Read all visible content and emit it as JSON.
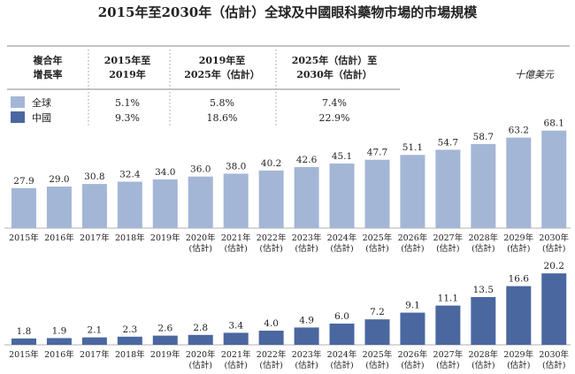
{
  "chart_title": "2015年至2030年（估計）全球及中國眼科藥物市場的市場規模",
  "unit": "十億美元",
  "cagr_table": {
    "header": [
      "複合年",
      "增長率"
    ],
    "periods": [
      {
        "line1": "2015年至",
        "line2": "2019年"
      },
      {
        "line1": "2019年至",
        "line2": "2025年（估計）"
      },
      {
        "line1": "2025年（估計）至",
        "line2": "2030年（估計）"
      }
    ],
    "rows": [
      {
        "label": "全球",
        "values": [
          "5.1%",
          "5.8%",
          "7.4%"
        ]
      },
      {
        "label": "中國",
        "values": [
          "9.3%",
          "18.6%",
          "22.9%"
        ]
      }
    ]
  },
  "chart_data": [
    {
      "type": "bar",
      "series_name": "全球",
      "color": "#a4b6d6",
      "categories": [
        [
          "2015年"
        ],
        [
          "2016年"
        ],
        [
          "2017年"
        ],
        [
          "2018年"
        ],
        [
          "2019年"
        ],
        [
          "2020年",
          "(估計)"
        ],
        [
          "2021年",
          "(估計)"
        ],
        [
          "2022年",
          "(估計)"
        ],
        [
          "2023年",
          "(估計)"
        ],
        [
          "2024年",
          "(估計)"
        ],
        [
          "2025年",
          "(估計)"
        ],
        [
          "2026年",
          "(估計)"
        ],
        [
          "2027年",
          "(估計)"
        ],
        [
          "2028年",
          "(估計)"
        ],
        [
          "2029年",
          "(估計)"
        ],
        [
          "2030年",
          "(估計)"
        ]
      ],
      "values": [
        27.9,
        29.0,
        30.8,
        32.4,
        34.0,
        36.0,
        38.0,
        40.2,
        42.6,
        45.1,
        47.7,
        51.1,
        54.7,
        58.7,
        63.2,
        68.1
      ],
      "labels": [
        "27.9",
        "29.0",
        "30.8",
        "32.4",
        "34.0",
        "36.0",
        "38.0",
        "40.2",
        "42.6",
        "45.1",
        "47.7",
        "51.1",
        "54.7",
        "58.7",
        "63.2",
        "68.1"
      ]
    },
    {
      "type": "bar",
      "series_name": "中國",
      "color": "#4a67a0",
      "categories": [
        [
          "2015年"
        ],
        [
          "2016年"
        ],
        [
          "2017年"
        ],
        [
          "2018年"
        ],
        [
          "2019年"
        ],
        [
          "2020年",
          "(估計)"
        ],
        [
          "2021年",
          "(估計)"
        ],
        [
          "2022年",
          "(估計)"
        ],
        [
          "2023年",
          "(估計)"
        ],
        [
          "2024年",
          "(估計)"
        ],
        [
          "2025年",
          "(估計)"
        ],
        [
          "2026年",
          "(估計)"
        ],
        [
          "2027年",
          "(估計)"
        ],
        [
          "2028年",
          "(估計)"
        ],
        [
          "2029年",
          "(估計)"
        ],
        [
          "2030年",
          "(估計)"
        ]
      ],
      "values": [
        1.8,
        1.9,
        2.1,
        2.3,
        2.6,
        2.8,
        3.4,
        4.0,
        4.9,
        6.0,
        7.2,
        9.1,
        11.1,
        13.5,
        16.6,
        20.2
      ],
      "labels": [
        "1.8",
        "1.9",
        "2.1",
        "2.3",
        "2.6",
        "2.8",
        "3.4",
        "4.0",
        "4.9",
        "6.0",
        "7.2",
        "9.1",
        "11.1",
        "13.5",
        "16.6",
        "20.2"
      ]
    }
  ]
}
